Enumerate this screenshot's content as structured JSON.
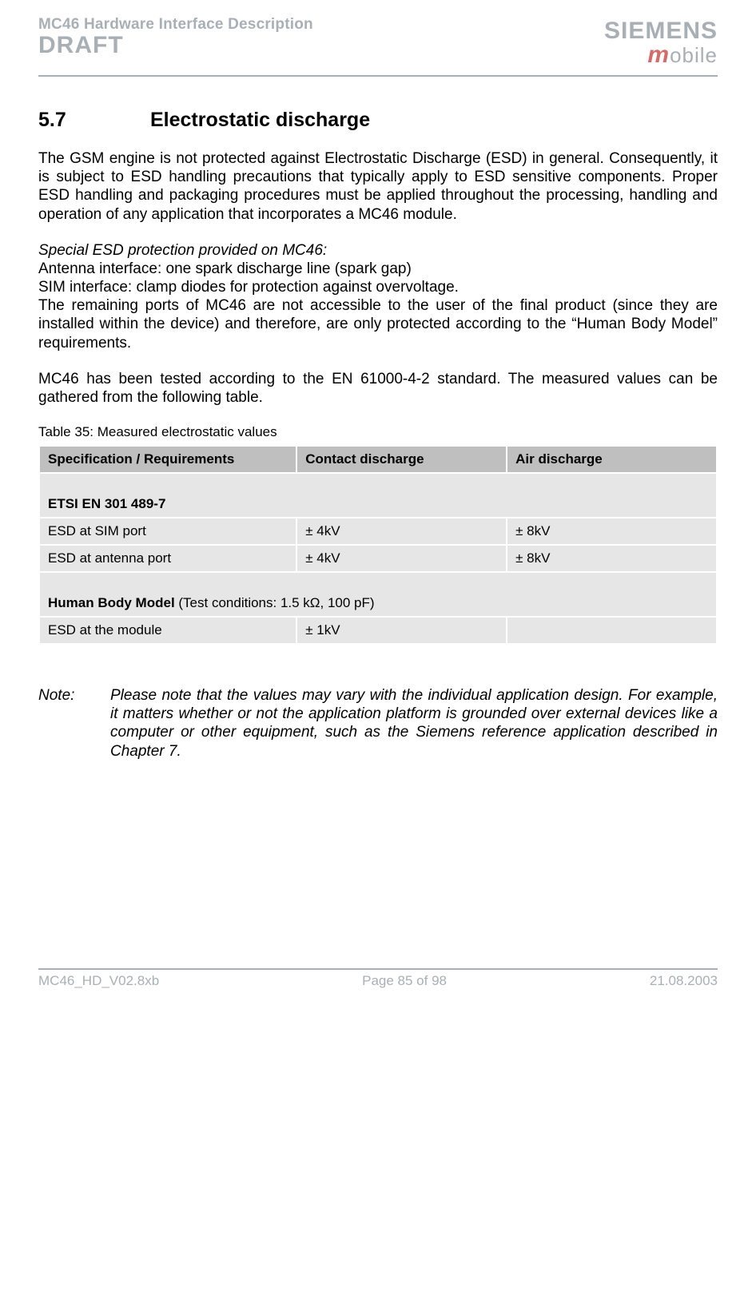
{
  "header": {
    "doc_title": "MC46 Hardware Interface Description",
    "draft": "DRAFT",
    "brand": "SIEMENS",
    "mobile_m": "m",
    "mobile_rest": "obile"
  },
  "section": {
    "number": "5.7",
    "title": "Electrostatic discharge"
  },
  "p1": "The GSM engine is not protected against Electrostatic Discharge (ESD) in general. Consequently, it is subject to ESD handling precautions that typically apply to ESD sensitive components. Proper ESD handling and packaging procedures must be applied throughout the processing, handling and operation of any application that incorporates a MC46 module.",
  "p2_lead": "Special ESD protection provided on MC46:",
  "p2_l1": "Antenna interface: one spark discharge line (spark gap)",
  "p2_l2": "SIM interface: clamp diodes for protection against overvoltage.",
  "p2_l3": "The remaining ports of MC46 are not accessible to the user of the final product (since they are installed within the device) and therefore, are only protected according to the “Human Body Model” requirements.",
  "p3": "MC46 has been tested according to the EN 61000-4-2 standard. The measured values can be gathered from the following table.",
  "table": {
    "caption": "Table 35: Measured electrostatic values",
    "h1": "Specification / Requirements",
    "h2": "Contact discharge",
    "h3": "Air discharge",
    "sub1": "ETSI EN 301 489-7",
    "r1c1": "ESD at SIM port",
    "r1c2": "± 4kV",
    "r1c3": "± 8kV",
    "r2c1": "ESD at antenna port",
    "r2c2": "± 4kV",
    "r2c3": "± 8kV",
    "sub2_prefix": "Human Body Model",
    "sub2_rest": " (Test conditions: 1.5 kΩ, 100 pF)",
    "r3c1": "ESD at the module",
    "r3c2": "± 1kV",
    "r3c3": ""
  },
  "note": {
    "label": "Note:",
    "body": "Please note that the values may vary with the individual application design. For example, it matters whether or not the application platform is grounded over external devices like a computer or other equipment, such as the Siemens reference application described in Chapter 7."
  },
  "footer": {
    "left": "MC46_HD_V02.8xb",
    "center": "Page 85 of 98",
    "right": "21.08.2003"
  }
}
